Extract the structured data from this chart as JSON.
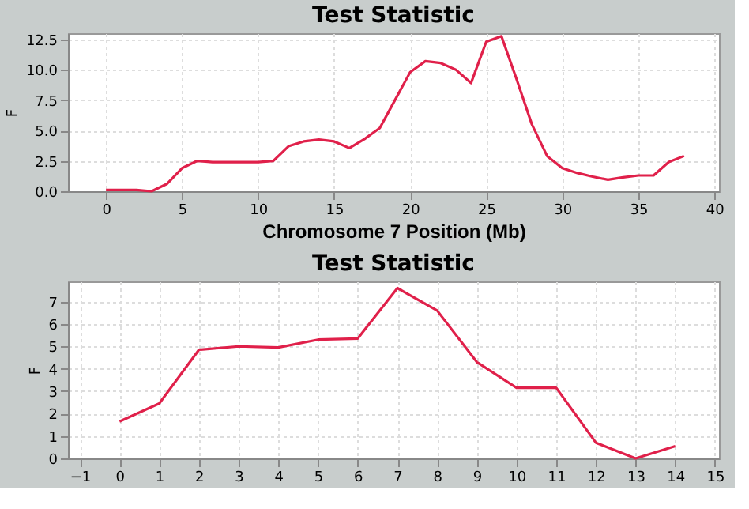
{
  "chart_data": [
    {
      "type": "line",
      "title": "Test Statistic",
      "xlabel": "Chromosome 7 Position (Mb)",
      "ylabel": "F",
      "color": "#e0204a",
      "grid": true,
      "line_style": "solid",
      "x": [
        0,
        1,
        2,
        3,
        4,
        5,
        6,
        7,
        8,
        9,
        10,
        11,
        12,
        13,
        14,
        15,
        16,
        17,
        18,
        19,
        20,
        21,
        22,
        23,
        24,
        25,
        26,
        27,
        28,
        29,
        30,
        31,
        32,
        33,
        34,
        35,
        36,
        37,
        38
      ],
      "values": [
        0.1,
        0.1,
        0.1,
        0,
        0.6,
        1.9,
        2.5,
        2.4,
        2.4,
        2.4,
        2.4,
        2.5,
        3.7,
        4.1,
        4.25,
        4.1,
        3.55,
        4.3,
        5.2,
        7.5,
        9.8,
        10.7,
        10.55,
        10.0,
        8.9,
        12.3,
        12.75,
        9.2,
        5.5,
        2.9,
        1.9,
        1.5,
        1.2,
        0.95,
        1.15,
        1.3,
        1.3,
        2.4,
        2.9
      ],
      "xlim": [
        -2.5,
        40.3
      ],
      "ylim": [
        0,
        13
      ],
      "xticks": [
        0,
        5,
        10,
        15,
        20,
        25,
        30,
        35,
        40
      ],
      "yticks": [
        {
          "value": 0,
          "label": "0.0"
        },
        {
          "value": 2.5,
          "label": "2.5"
        },
        {
          "value": 5,
          "label": "5.0"
        },
        {
          "value": 7.5,
          "label": "7.5"
        },
        {
          "value": 10,
          "label": "10.0"
        },
        {
          "value": 12.5,
          "label": "12.5"
        }
      ]
    },
    {
      "type": "line",
      "title": "Test Statistic",
      "ylabel": "F",
      "color": "#e0204a",
      "grid": true,
      "line_style": "solid",
      "x": [
        0,
        1,
        2,
        3,
        4,
        5,
        6,
        7,
        8,
        9,
        10,
        11,
        12,
        13,
        14
      ],
      "values": [
        1.65,
        2.45,
        4.85,
        5.0,
        4.95,
        5.3,
        5.35,
        7.6,
        6.6,
        4.3,
        3.15,
        3.15,
        0.7,
        0,
        0.55
      ],
      "xlim": [
        -1.3,
        15.1
      ],
      "ylim": [
        0,
        7.9
      ],
      "xticks": [
        -1,
        0,
        1,
        2,
        3,
        4,
        5,
        6,
        7,
        8,
        9,
        10,
        11,
        12,
        13,
        14,
        15
      ],
      "yticks": [
        0,
        1,
        2,
        3,
        4,
        5,
        6,
        7
      ]
    }
  ]
}
